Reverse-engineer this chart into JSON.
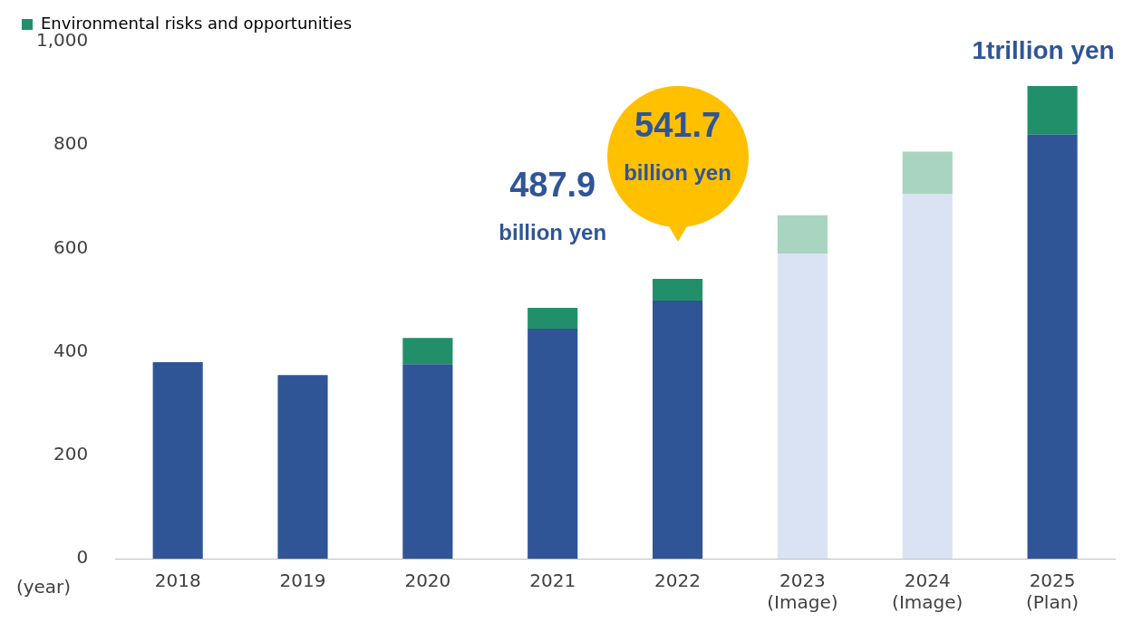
{
  "chart_data": {
    "type": "bar",
    "stacked": true,
    "xlabel": "(year)",
    "categories": [
      "2018",
      "2019",
      "2020",
      "2021",
      "2022",
      "2023\n(Image)",
      "2024\n(Image)",
      "2025\n(Plan)"
    ],
    "series": [
      {
        "color": "#2f5597",
        "colors": [
          "#2f5597",
          "#2f5597",
          "#2f5597",
          "#2f5597",
          "#2f5597",
          "#dae3f3",
          "#dae3f3",
          "#2f5597"
        ],
        "values": [
          380,
          355,
          376,
          445,
          499,
          590,
          705,
          820
        ]
      },
      {
        "name": "Environmental risks and opportunities",
        "color": "#21906a",
        "colors": [
          "#21906a",
          "#21906a",
          "#21906a",
          "#21906a",
          "#21906a",
          "#a9d4c1",
          "#a9d4c1",
          "#21906a"
        ],
        "values": [
          null,
          null,
          51,
          40,
          42,
          74,
          82,
          94
        ]
      }
    ],
    "ylim": [
      0,
      1000
    ],
    "yticks": [
      0,
      200,
      400,
      600,
      800,
      {
        "value": 1000,
        "label": "1,000"
      }
    ],
    "grid": false,
    "legend": "top left",
    "annotations": [
      {
        "text": "487.9\nbillion yen",
        "x": "2021",
        "y": 487.9
      },
      {
        "text": "541.7\nbillion yen",
        "x": "2022",
        "y": 541.7
      },
      {
        "text": "1trillion yen",
        "x": "2025\n(Plan)",
        "y": 914
      }
    ]
  }
}
